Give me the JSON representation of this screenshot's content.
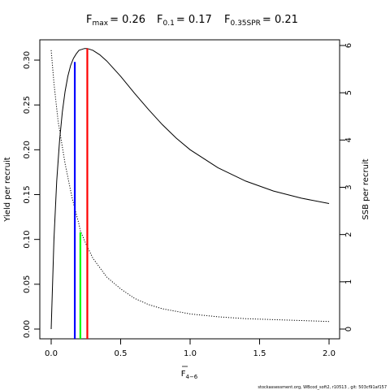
{
  "chart_data": {
    "type": "line",
    "title_parts": [
      {
        "main": "F",
        "sub": "max",
        "value": "= 0.26"
      },
      {
        "main": "F",
        "sub": "0.1",
        "value": "= 0.17"
      },
      {
        "main": "F",
        "sub": "0.35SPR",
        "value": "= 0.21"
      }
    ],
    "xlabel": {
      "main": "F",
      "sub": "4−6",
      "overbar": true
    },
    "ylabel_left": "Yield per recruit",
    "ylabel_right": "SSB per recruit",
    "xlim": [
      0,
      2
    ],
    "ylim_left": [
      0,
      0.31
    ],
    "ylim_right": [
      0,
      6
    ],
    "x_ticks": [
      "0.0",
      "0.5",
      "1.0",
      "1.5",
      "2.0"
    ],
    "y_left_ticks": [
      "0.00",
      "0.05",
      "0.10",
      "0.15",
      "0.20",
      "0.25",
      "0.30"
    ],
    "y_right_ticks": [
      "0",
      "1",
      "2",
      "3",
      "4",
      "5",
      "6"
    ],
    "series": [
      {
        "axis": "left",
        "style": "solid",
        "color": "#000000",
        "x": [
          0,
          0.02,
          0.04,
          0.06,
          0.08,
          0.1,
          0.12,
          0.14,
          0.16,
          0.18,
          0.2,
          0.22,
          0.24,
          0.26,
          0.3,
          0.35,
          0.4,
          0.5,
          0.6,
          0.7,
          0.8,
          0.9,
          1.0,
          1.2,
          1.4,
          1.6,
          1.8,
          2.0
        ],
        "y": [
          0,
          0.1,
          0.165,
          0.21,
          0.242,
          0.265,
          0.282,
          0.294,
          0.302,
          0.307,
          0.311,
          0.312,
          0.313,
          0.313,
          0.311,
          0.306,
          0.299,
          0.282,
          0.263,
          0.245,
          0.228,
          0.213,
          0.2,
          0.18,
          0.165,
          0.154,
          0.146,
          0.14
        ]
      },
      {
        "axis": "right",
        "style": "dotted",
        "color": "#000000",
        "x": [
          0,
          0.02,
          0.05,
          0.1,
          0.15,
          0.17,
          0.2,
          0.21,
          0.25,
          0.3,
          0.4,
          0.5,
          0.6,
          0.7,
          0.8,
          1.0,
          1.2,
          1.4,
          1.6,
          1.8,
          2.0
        ],
        "y": [
          5.9,
          5.2,
          4.4,
          3.5,
          2.78,
          2.55,
          2.22,
          2.08,
          1.8,
          1.5,
          1.1,
          0.85,
          0.65,
          0.52,
          0.43,
          0.32,
          0.26,
          0.22,
          0.2,
          0.18,
          0.16
        ]
      }
    ],
    "reference_lines": [
      {
        "x": 0.17,
        "axis": "left",
        "y_top": 0.298,
        "color": "#0000ff"
      },
      {
        "x": 0.21,
        "axis": "left",
        "y_top": 0.108,
        "color": "#00ff00"
      },
      {
        "x": 0.26,
        "axis": "left",
        "y_top": 0.313,
        "color": "#ff0000"
      }
    ]
  },
  "footer": "stockassessment.org, WBcod_soft2, r10513 , git: 503cf91af157"
}
